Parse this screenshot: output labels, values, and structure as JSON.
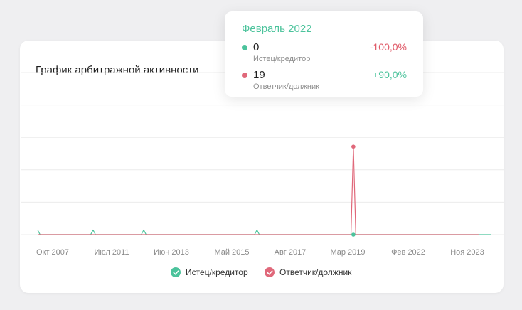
{
  "colors": {
    "plaintiff": "#4cc39c",
    "defendant": "#e0687a",
    "grid": "#ececec",
    "negative": "#e05a68",
    "positive": "#4cc39c"
  },
  "chart_data": {
    "type": "line",
    "title": "График арбитражной активности",
    "x_ticks": [
      "Окт 2007",
      "Июл 2011",
      "Июн 2013",
      "Май 2015",
      "Авг 2017",
      "Мар 2019",
      "Фев 2022",
      "Ноя 2023"
    ],
    "ylim": [
      0,
      35
    ],
    "grid": true,
    "legend_position": "bottom-center",
    "highlight_index": 131,
    "series": [
      {
        "name": "Истец/кредитор",
        "values": [
          1,
          0,
          0,
          0,
          0,
          0,
          0,
          0,
          0,
          0,
          0,
          0,
          0,
          0,
          0,
          0,
          0,
          0,
          0,
          0,
          0,
          0,
          0,
          1,
          0,
          0,
          0,
          0,
          0,
          0,
          0,
          0,
          0,
          0,
          0,
          0,
          0,
          0,
          0,
          0,
          0,
          0,
          0,
          0,
          1,
          0,
          0,
          0,
          0,
          0,
          0,
          0,
          0,
          0,
          0,
          0,
          0,
          0,
          0,
          0,
          0,
          0,
          0,
          0,
          0,
          0,
          0,
          0,
          0,
          0,
          0,
          0,
          0,
          0,
          0,
          0,
          0,
          0,
          0,
          0,
          0,
          0,
          0,
          0,
          0,
          0,
          0,
          0,
          0,
          0,
          0,
          1,
          0,
          0,
          0,
          0,
          0,
          0,
          0,
          0,
          0,
          0,
          0,
          0,
          0,
          0,
          0,
          0,
          0,
          0,
          0,
          0,
          0,
          0,
          0,
          0,
          0,
          0,
          0,
          0,
          0,
          0,
          0,
          0,
          0,
          0,
          0,
          0,
          0,
          0,
          0,
          0,
          0,
          0,
          0,
          0,
          0,
          0,
          0,
          0,
          0,
          0,
          0,
          0,
          0,
          0,
          0,
          0,
          0,
          0,
          0,
          0,
          0,
          0,
          0,
          0,
          0,
          0,
          0,
          0,
          0,
          0,
          0,
          0,
          0,
          0,
          0,
          0,
          0,
          0,
          0,
          0,
          0,
          0,
          0,
          0,
          0,
          0,
          0,
          0,
          0,
          0,
          0,
          0,
          0,
          0,
          0,
          0,
          0
        ]
      },
      {
        "name": "Ответчик/должник",
        "values": [
          0,
          0,
          0,
          0,
          0,
          0,
          0,
          0,
          0,
          0,
          0,
          0,
          0,
          0,
          0,
          0,
          0,
          0,
          0,
          0,
          0,
          0,
          0,
          0,
          0,
          0,
          0,
          0,
          0,
          0,
          0,
          0,
          0,
          0,
          0,
          0,
          0,
          0,
          0,
          0,
          0,
          0,
          0,
          0,
          0,
          0,
          0,
          0,
          0,
          0,
          0,
          0,
          0,
          0,
          0,
          0,
          0,
          0,
          0,
          0,
          0,
          0,
          0,
          0,
          0,
          0,
          0,
          0,
          0,
          0,
          0,
          0,
          0,
          0,
          0,
          0,
          0,
          0,
          0,
          0,
          0,
          0,
          0,
          0,
          0,
          0,
          0,
          0,
          0,
          0,
          0,
          0,
          0,
          0,
          0,
          0,
          0,
          0,
          0,
          0,
          0,
          0,
          0,
          0,
          0,
          0,
          0,
          0,
          0,
          0,
          0,
          0,
          0,
          0,
          0,
          0,
          0,
          0,
          0,
          0,
          0,
          0,
          0,
          0,
          0,
          0,
          0,
          0,
          0,
          0,
          0,
          19,
          0,
          0,
          0,
          0,
          0,
          0,
          0,
          0,
          0,
          0,
          0,
          0,
          0,
          0,
          0,
          0,
          0,
          0,
          0,
          0,
          0,
          0,
          0,
          0,
          0,
          0,
          0,
          0,
          0,
          0,
          0,
          0,
          0,
          0,
          0,
          0,
          0,
          0,
          0,
          0,
          0,
          0,
          0,
          0,
          0,
          0,
          0,
          0,
          0,
          0,
          0,
          0
        ]
      }
    ]
  },
  "tooltip": {
    "title": "Февраль 2022",
    "rows": [
      {
        "value": "0",
        "label": "Истец/кредитор",
        "change": "-100,0%"
      },
      {
        "value": "19",
        "label": "Ответчик/должник",
        "change": "+90,0%"
      }
    ]
  },
  "legend": [
    {
      "label": "Истец/кредитор"
    },
    {
      "label": "Ответчик/должник"
    }
  ]
}
